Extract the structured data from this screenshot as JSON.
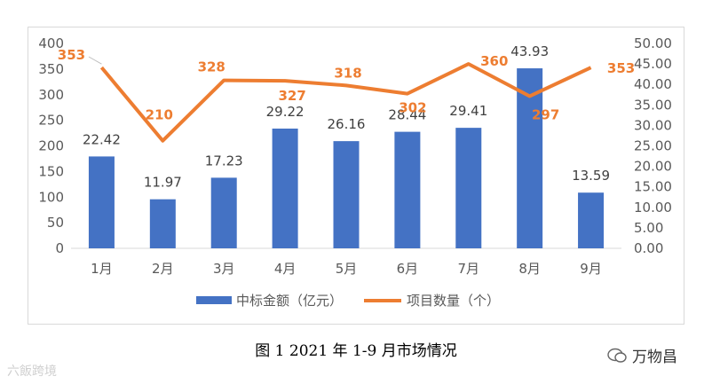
{
  "chart_data": {
    "type": "bar+line",
    "categories": [
      "1月",
      "2月",
      "3月",
      "4月",
      "5月",
      "6月",
      "7月",
      "8月",
      "9月"
    ],
    "series": [
      {
        "name": "中标金额（亿元）",
        "type": "bar",
        "axis": "right",
        "values": [
          22.42,
          11.97,
          17.23,
          29.22,
          26.16,
          28.44,
          29.41,
          43.93,
          13.59
        ],
        "labels": [
          "22.42",
          "11.97",
          "17.23",
          "29.22",
          "26.16",
          "28.44",
          "29.41",
          "43.93",
          "13.59"
        ],
        "color": "#4472c4"
      },
      {
        "name": "项目数量（个）",
        "type": "line",
        "axis": "left",
        "values": [
          353,
          210,
          328,
          327,
          318,
          302,
          360,
          297,
          353
        ],
        "labels": [
          "353",
          "210",
          "328",
          "327",
          "318",
          "302",
          "360",
          "297",
          "353"
        ],
        "color": "#ed7d31"
      }
    ],
    "left_axis": {
      "min": 0,
      "max": 400,
      "step": 50,
      "tick_labels": [
        "0",
        "50",
        "100",
        "150",
        "200",
        "250",
        "300",
        "350",
        "400"
      ]
    },
    "right_axis": {
      "min": 0,
      "max": 50,
      "step": 5,
      "tick_labels": [
        "0.00",
        "5.00",
        "10.00",
        "15.00",
        "20.00",
        "25.00",
        "30.00",
        "35.00",
        "40.00",
        "45.00",
        "50.00"
      ]
    },
    "legend": {
      "position": "bottom"
    },
    "grid": false
  },
  "caption": "图 1  2021 年 1-9 月市场情况",
  "watermark_left": "六飯跨境",
  "watermark_right": "万物昌"
}
